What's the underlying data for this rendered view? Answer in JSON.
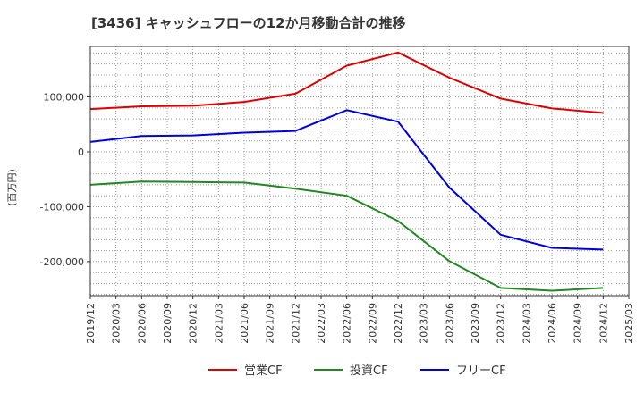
{
  "chart_data": {
    "type": "line",
    "title": "[3436]  キャッシュフローの12か月移動合計の推移",
    "ylabel": "(百万円)",
    "xlabel": "",
    "ylim": [
      -262000,
      192000
    ],
    "yticks": [
      {
        "value": 100000,
        "label": "100,000"
      },
      {
        "value": 0,
        "label": "0"
      },
      {
        "value": -100000,
        "label": "-100,000"
      },
      {
        "value": -200000,
        "label": "-200,000"
      }
    ],
    "x_tick_labels": [
      "2019/12",
      "2020/03",
      "2020/06",
      "2020/09",
      "2020/12",
      "2021/03",
      "2021/06",
      "2021/09",
      "2021/12",
      "2022/03",
      "2022/06",
      "2022/09",
      "2022/12",
      "2023/03",
      "2023/06",
      "2023/09",
      "2023/12",
      "2024/03",
      "2024/06",
      "2024/09",
      "2024/12",
      "2025/03"
    ],
    "x": [
      "2019/12",
      "2020/06",
      "2020/12",
      "2021/06",
      "2021/12",
      "2022/06",
      "2022/12",
      "2023/06",
      "2023/12",
      "2024/06",
      "2024/12"
    ],
    "series": [
      {
        "name": "営業CF",
        "color": "#dd0000",
        "values": [
          78000,
          83000,
          84000,
          91000,
          106000,
          157000,
          181000,
          135000,
          97000,
          79000,
          71000
        ]
      },
      {
        "name": "投資CF",
        "color": "#228822",
        "values": [
          -60000,
          -54000,
          -55000,
          -56000,
          -67000,
          -80000,
          -126000,
          -199000,
          -248000,
          -253000,
          -248000
        ]
      },
      {
        "name": "フリーCF",
        "color": "#0000dd",
        "values": [
          18000,
          29000,
          30000,
          35000,
          38000,
          76000,
          55000,
          -65000,
          -151000,
          -175000,
          -178000
        ]
      }
    ],
    "grid": true,
    "legend_position": "bottom"
  }
}
